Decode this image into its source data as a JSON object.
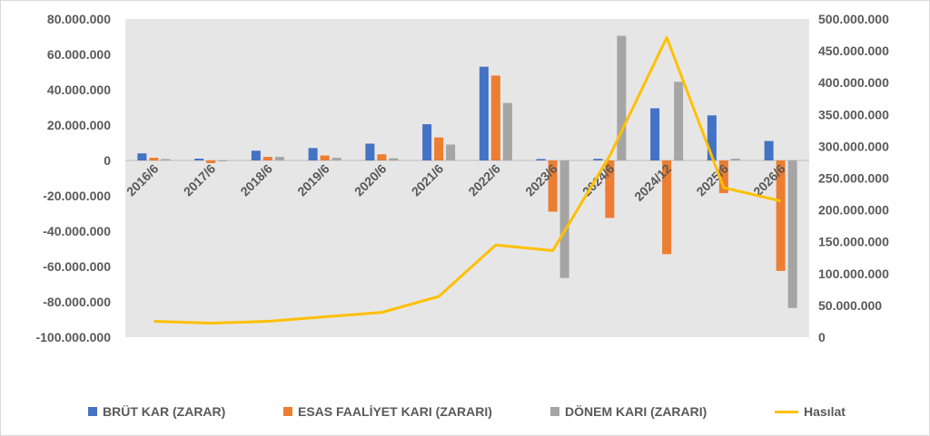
{
  "chart_data": {
    "type": "bar",
    "title": "",
    "categories": [
      "2016/6",
      "2017/6",
      "2018/6",
      "2019/6",
      "2020/6",
      "2021/6",
      "2022/6",
      "2023/6",
      "2024/6",
      "2024/12",
      "2025/6",
      "2026/6"
    ],
    "series": [
      {
        "name": "BRÜT KAR (ZARAR)",
        "type": "bar",
        "axis": "left",
        "color": "#4472C4",
        "values": [
          4000000,
          1000000,
          5500000,
          7000000,
          9500000,
          20500000,
          53000000,
          800000,
          900000,
          29500000,
          25500000,
          11000000
        ]
      },
      {
        "name": "ESAS FAALİYET KARI (ZARARI)",
        "type": "bar",
        "axis": "left",
        "color": "#ED7D31",
        "values": [
          1500000,
          -1500000,
          2000000,
          2800000,
          3500000,
          13000000,
          48000000,
          -29000000,
          -32500000,
          -53000000,
          -18500000,
          -62500000
        ]
      },
      {
        "name": "DÖNEM KARI (ZARARI)",
        "type": "bar",
        "axis": "left",
        "color": "#A5A5A5",
        "values": [
          800000,
          -500000,
          2000000,
          1500000,
          1200000,
          9000000,
          32500000,
          -66500000,
          70500000,
          44500000,
          1000000,
          -83500000
        ]
      },
      {
        "name": "Hasılat",
        "type": "line",
        "axis": "right",
        "color": "#FFC000",
        "values": [
          25000000,
          22000000,
          25000000,
          32000000,
          39000000,
          64000000,
          145000000,
          136000000,
          285000000,
          471000000,
          235000000,
          214000000
        ]
      }
    ],
    "y_left": {
      "min": -100000000,
      "max": 80000000,
      "step": 20000000,
      "tick_labels": [
        "-100.000.000",
        "-80.000.000",
        "-60.000.000",
        "-40.000.000",
        "-20.000.000",
        "0",
        "20.000.000",
        "40.000.000",
        "60.000.000",
        "80.000.000"
      ]
    },
    "y_right": {
      "min": 0,
      "max": 500000000,
      "step": 50000000,
      "tick_labels": [
        "0",
        "50.000.000",
        "100.000.000",
        "150.000.000",
        "200.000.000",
        "250.000.000",
        "300.000.000",
        "350.000.000",
        "400.000.000",
        "450.000.000",
        "500.000.000"
      ]
    },
    "plot_background": "#E7E6E6",
    "legend_position": "bottom"
  }
}
